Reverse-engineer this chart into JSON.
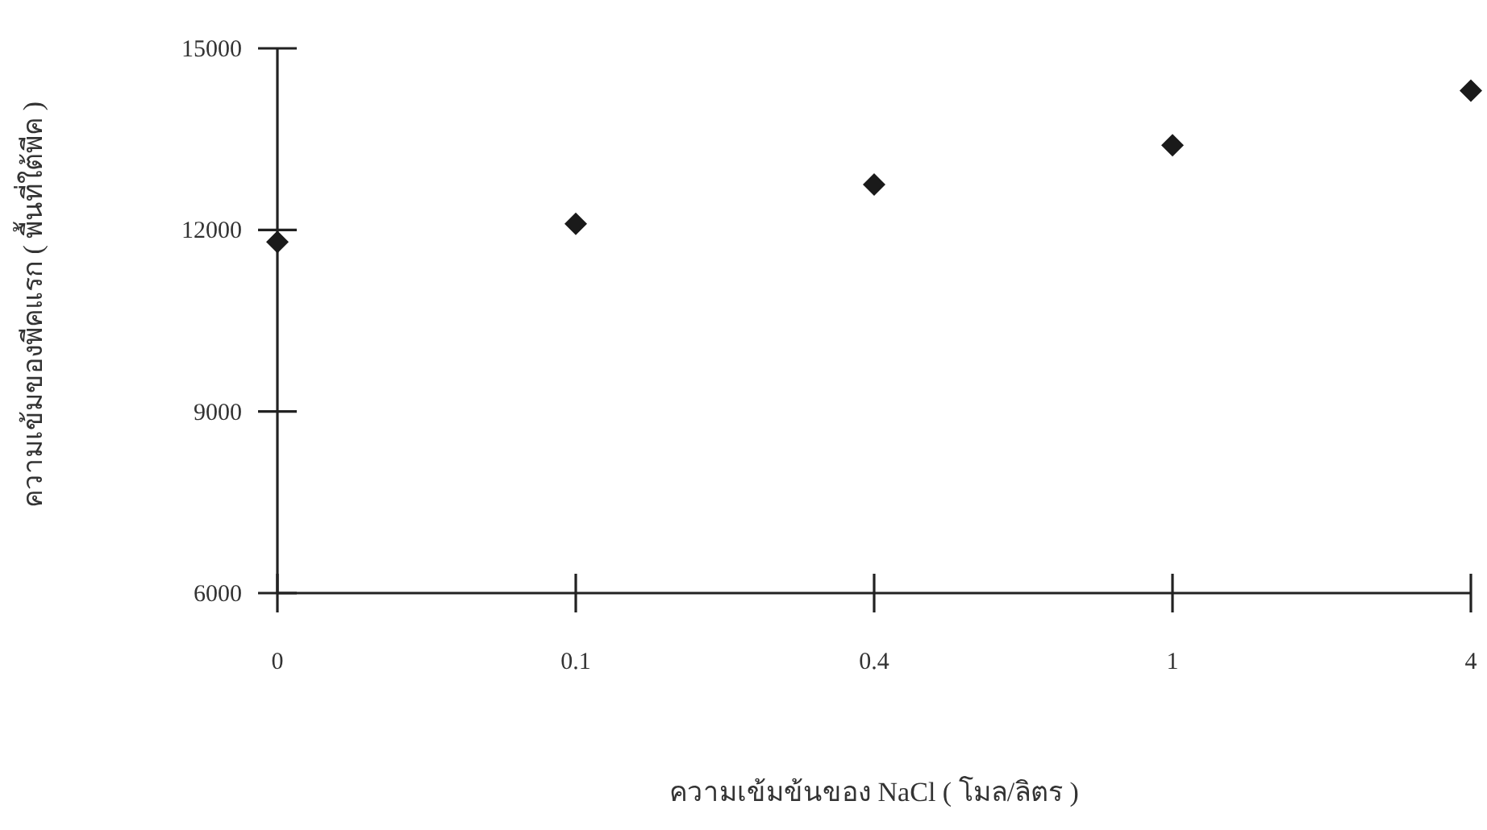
{
  "chart_data": {
    "type": "scatter",
    "xlabel": "ความเข้มข้นของ NaCl ( โมล/ลิตร )",
    "ylabel": "ความเข้มของพีคแรก ( พื้นที่ใต้พีค )",
    "categories": [
      "0",
      "0.1",
      "0.4",
      "1",
      "4"
    ],
    "values": [
      11800,
      12100,
      12750,
      13400,
      14300
    ],
    "color": "#1a1a1a",
    "marker": "diamond",
    "ylim": [
      6000,
      15000
    ],
    "yticks": [
      6000,
      9000,
      12000,
      15000
    ]
  }
}
